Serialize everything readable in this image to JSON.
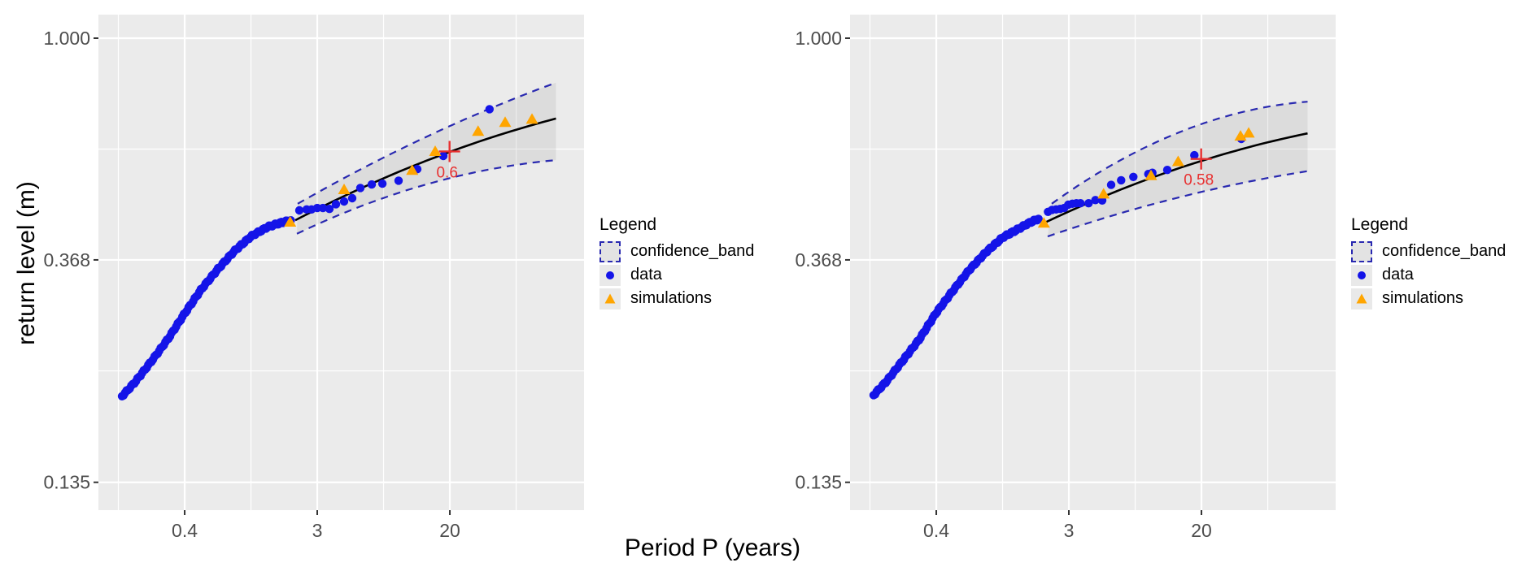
{
  "chart_data": {
    "type": "scatter",
    "title": "",
    "xlabel": "Period P (years)",
    "ylabel": "return level (m)",
    "x_scale": "log",
    "y_scale": "log",
    "x_tick_labels": [
      "0.4",
      "3",
      "20"
    ],
    "x_tick_values": [
      0.368,
      2.718,
      20.086
    ],
    "x_minor_ln": [
      -2,
      0,
      2,
      4
    ],
    "y_tick_labels": [
      "1.000",
      "0.368",
      "0.135"
    ],
    "y_tick_values": [
      1.0,
      0.368,
      0.135
    ],
    "y_minor_ln": [
      -0.5,
      -1.5
    ],
    "x_range": [
      0.1,
      152
    ],
    "y_range": [
      0.119,
      1.11
    ],
    "grid": true,
    "legend": {
      "title": "Legend",
      "position": "right",
      "items": [
        {
          "key": "confidence_band",
          "label": "confidence_band"
        },
        {
          "key": "data",
          "label": "data"
        },
        {
          "key": "simulations",
          "label": "simulations"
        }
      ]
    },
    "panels": [
      {
        "name": "left-panel",
        "estimate": {
          "P": 20,
          "level": 0.6,
          "label": "0.6"
        },
        "dense_count": 110,
        "data_dense": [
          [
            0.143,
            0.199
          ],
          [
            0.174,
            0.212
          ],
          [
            0.223,
            0.233
          ],
          [
            0.287,
            0.258
          ],
          [
            0.368,
            0.289
          ],
          [
            0.472,
            0.322
          ],
          [
            0.607,
            0.353
          ],
          [
            0.779,
            0.383
          ],
          [
            1.0,
            0.409
          ],
          [
            1.284,
            0.427
          ],
          [
            1.568,
            0.435
          ],
          [
            1.822,
            0.44
          ]
        ],
        "data_points": [
          [
            2.075,
            0.46
          ],
          [
            2.316,
            0.462
          ],
          [
            2.494,
            0.462
          ],
          [
            2.718,
            0.465
          ],
          [
            2.962,
            0.465
          ],
          [
            3.268,
            0.463
          ],
          [
            3.604,
            0.473
          ],
          [
            4.076,
            0.479
          ],
          [
            4.605,
            0.486
          ],
          [
            5.207,
            0.509
          ],
          [
            6.184,
            0.517
          ],
          [
            7.257,
            0.519
          ],
          [
            9.272,
            0.526
          ],
          [
            12.29,
            0.554
          ],
          [
            18.21,
            0.588
          ],
          [
            36.52,
            0.726
          ]
        ],
        "simulations": [
          [
            1.806,
            0.437
          ],
          [
            4.076,
            0.506
          ],
          [
            11.38,
            0.552
          ],
          [
            16.1,
            0.601
          ],
          [
            30.75,
            0.658
          ],
          [
            46.25,
            0.685
          ],
          [
            69.35,
            0.695
          ]
        ],
        "fit_line": [
          [
            1.952,
            0.44
          ],
          [
            20.09,
            0.599
          ],
          [
            99.5,
            0.696
          ]
        ],
        "band_upper": [
          [
            2.024,
            0.474
          ],
          [
            20.09,
            0.673
          ],
          [
            99.5,
            0.818
          ]
        ],
        "band_lower": [
          [
            2.0,
            0.414
          ],
          [
            20.09,
            0.532
          ],
          [
            99.5,
            0.577
          ]
        ]
      },
      {
        "name": "right-panel",
        "estimate": {
          "P": 20,
          "level": 0.58,
          "label": "0.58"
        },
        "dense_count": 110,
        "data_dense": [
          [
            0.143,
            0.2
          ],
          [
            0.174,
            0.213
          ],
          [
            0.223,
            0.234
          ],
          [
            0.287,
            0.258
          ],
          [
            0.368,
            0.29
          ],
          [
            0.472,
            0.32
          ],
          [
            0.607,
            0.352
          ],
          [
            0.779,
            0.381
          ],
          [
            1.0,
            0.407
          ],
          [
            1.284,
            0.424
          ],
          [
            1.522,
            0.436
          ],
          [
            1.72,
            0.443
          ]
        ],
        "data_points": [
          [
            1.984,
            0.457
          ],
          [
            2.109,
            0.461
          ],
          [
            2.241,
            0.462
          ],
          [
            2.384,
            0.463
          ],
          [
            2.535,
            0.465
          ],
          [
            2.694,
            0.472
          ],
          [
            2.866,
            0.474
          ],
          [
            3.046,
            0.475
          ],
          [
            3.238,
            0.475
          ],
          [
            3.662,
            0.475
          ],
          [
            4.059,
            0.482
          ],
          [
            4.495,
            0.481
          ],
          [
            5.145,
            0.516
          ],
          [
            5.984,
            0.527
          ],
          [
            7.192,
            0.535
          ],
          [
            9.016,
            0.542
          ],
          [
            9.583,
            0.545
          ],
          [
            12.0,
            0.552
          ],
          [
            18.05,
            0.59
          ],
          [
            36.63,
            0.635
          ]
        ],
        "simulations": [
          [
            1.865,
            0.435
          ],
          [
            4.591,
            0.496
          ],
          [
            9.384,
            0.539
          ],
          [
            14.13,
            0.574
          ],
          [
            36.2,
            0.644
          ],
          [
            40.94,
            0.653
          ]
        ],
        "fit_line": [
          [
            1.791,
            0.432
          ],
          [
            20.09,
            0.575
          ],
          [
            99.5,
            0.651
          ]
        ],
        "band_upper": [
          [
            2.1,
            0.474
          ],
          [
            20.09,
            0.679
          ],
          [
            99.5,
            0.751
          ]
        ],
        "band_lower": [
          [
            1.976,
            0.409
          ],
          [
            20.09,
            0.5
          ],
          [
            99.5,
            0.549
          ]
        ]
      }
    ],
    "colors": {
      "data_point": "#1414e8",
      "simulation": "#ffa500",
      "band_border": "#2929b0",
      "band_fill": "rgba(90,90,90,0.10)",
      "fit_line": "#000000",
      "estimate_marker": "#e83030",
      "panel_background": "#ebebeb",
      "grid": "#ffffff",
      "tick_text": "#4d4d4d",
      "title_text": "#000000"
    }
  }
}
